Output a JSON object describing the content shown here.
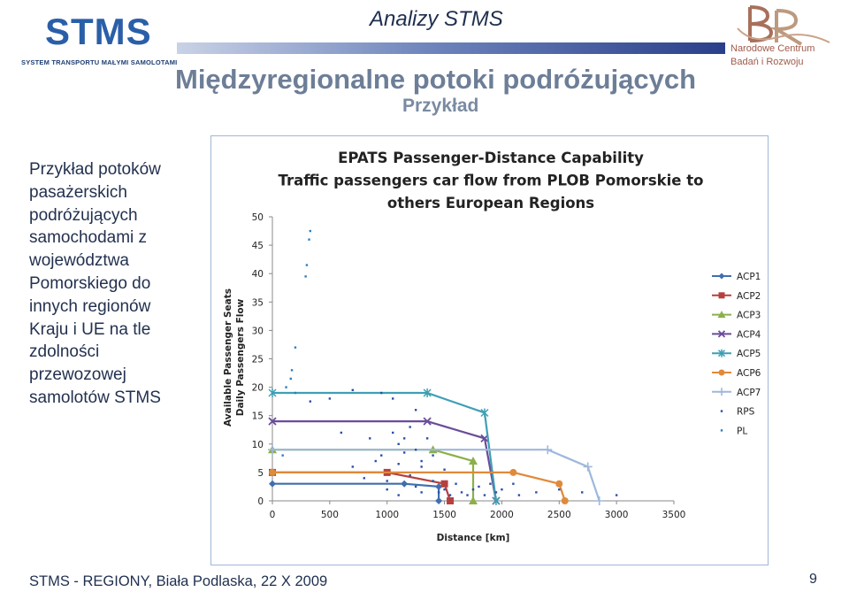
{
  "header": {
    "title": "Analizy STMS",
    "heading": "Międzyregionalne potoki podróżujących",
    "subheading": "Przykład"
  },
  "logos": {
    "stms": {
      "name": "STMS",
      "tagline": "SYSTEM TRANSPORTU MAŁYMI SAMOLOTAMI"
    },
    "ncbr": {
      "line1": "Narodowe Centrum",
      "line2": "Badań i Rozwoju"
    }
  },
  "description": {
    "lines": [
      "Przykład potoków",
      "pasażerskich",
      "podróżujących",
      "samochodami z",
      "województwa",
      "Pomorskiego do",
      "innych regionów",
      "Kraju i UE na tle",
      "zdolności",
      "przewozowej",
      "samolotów STMS"
    ]
  },
  "footer": {
    "text": "STMS - REGIONY, Biała Podlaska, 22 X 2009",
    "page": "9"
  },
  "colors": {
    "ACP1": "#3f6fae",
    "ACP2": "#b5413f",
    "ACP3": "#8bb04a",
    "ACP4": "#6b4c9a",
    "ACP5": "#3f9fb4",
    "ACP6": "#e08a3a",
    "ACP7": "#9eb8dc",
    "RPS": "#2a4fa8",
    "PL": "#2a7fc0"
  },
  "chart_data": {
    "type": "scatter",
    "title_lines": [
      "EPATS Passenger-Distance Capability",
      "Traffic passengers car flow from PLOB Pomorskie to",
      "others European Regions"
    ],
    "xlabel": "Distance [km]",
    "ylabel_lines": [
      "Available Passenger Seats",
      "Daily Passengers Flow"
    ],
    "xlim": [
      0,
      3500
    ],
    "ylim": [
      0,
      50
    ],
    "xticks": [
      0,
      500,
      1000,
      1500,
      2000,
      2500,
      3000,
      3500
    ],
    "yticks": [
      0,
      5,
      10,
      15,
      20,
      25,
      30,
      35,
      40,
      45,
      50
    ],
    "legend_position": "right",
    "series": [
      {
        "name": "ACP1",
        "marker": "diamond",
        "points": [
          [
            0,
            3
          ],
          [
            1150,
            3
          ],
          [
            1450,
            2.5
          ],
          [
            1450,
            0
          ]
        ]
      },
      {
        "name": "ACP2",
        "marker": "square",
        "points": [
          [
            0,
            5
          ],
          [
            1000,
            5
          ],
          [
            1500,
            3
          ],
          [
            1550,
            0
          ]
        ]
      },
      {
        "name": "ACP3",
        "marker": "triangle",
        "points": [
          [
            0,
            9
          ],
          [
            1400,
            9
          ],
          [
            1750,
            7
          ],
          [
            1750,
            0
          ]
        ]
      },
      {
        "name": "ACP4",
        "marker": "x",
        "points": [
          [
            0,
            14
          ],
          [
            1350,
            14
          ],
          [
            1850,
            11
          ],
          [
            1950,
            0
          ]
        ]
      },
      {
        "name": "ACP5",
        "marker": "star",
        "points": [
          [
            0,
            19
          ],
          [
            1350,
            19
          ],
          [
            1850,
            15.5
          ],
          [
            1950,
            0
          ]
        ]
      },
      {
        "name": "ACP6",
        "marker": "circle",
        "points": [
          [
            0,
            5
          ],
          [
            2100,
            5
          ],
          [
            2500,
            3
          ],
          [
            2550,
            0
          ]
        ]
      },
      {
        "name": "ACP7",
        "marker": "plus",
        "points": [
          [
            0,
            9
          ],
          [
            2400,
            9
          ],
          [
            2750,
            6
          ],
          [
            2850,
            0
          ]
        ]
      },
      {
        "name": "RPS",
        "marker": "dot",
        "points": [
          [
            330,
            17.5
          ],
          [
            500,
            18
          ],
          [
            700,
            19.5
          ],
          [
            950,
            19
          ],
          [
            1050,
            18
          ],
          [
            1250,
            16
          ],
          [
            600,
            12
          ],
          [
            850,
            11
          ],
          [
            1100,
            10
          ],
          [
            1200,
            13
          ],
          [
            1350,
            11
          ],
          [
            950,
            8
          ],
          [
            1250,
            9
          ],
          [
            1400,
            8
          ],
          [
            700,
            6
          ],
          [
            900,
            7
          ],
          [
            1100,
            6.5
          ],
          [
            1300,
            6
          ],
          [
            1500,
            5.5
          ],
          [
            800,
            4
          ],
          [
            1000,
            3.5
          ],
          [
            1200,
            4.5
          ],
          [
            1400,
            3.5
          ],
          [
            1600,
            3
          ],
          [
            1800,
            2.5
          ],
          [
            1900,
            3
          ],
          [
            2000,
            2
          ],
          [
            2100,
            3
          ],
          [
            2300,
            1.5
          ],
          [
            2500,
            2
          ],
          [
            3000,
            1
          ],
          [
            1000,
            2
          ],
          [
            1250,
            2.5
          ],
          [
            1450,
            1.5
          ],
          [
            1550,
            1
          ],
          [
            1650,
            1.5
          ],
          [
            1750,
            2
          ],
          [
            1850,
            1
          ],
          [
            1950,
            1.5
          ],
          [
            2150,
            1
          ],
          [
            2700,
            1.5
          ],
          [
            1100,
            1
          ],
          [
            1300,
            1.5
          ],
          [
            1500,
            2
          ],
          [
            1700,
            1
          ],
          [
            1150,
            8.5
          ],
          [
            1050,
            12
          ],
          [
            1150,
            11
          ],
          [
            1300,
            7
          ]
        ]
      },
      {
        "name": "PL",
        "marker": "dot",
        "points": [
          [
            330,
            47.5
          ],
          [
            320,
            46
          ],
          [
            300,
            41.5
          ],
          [
            290,
            39.5
          ],
          [
            200,
            27
          ],
          [
            170,
            23
          ],
          [
            160,
            21.5
          ],
          [
            90,
            8
          ],
          [
            120,
            20
          ],
          [
            200,
            19
          ]
        ]
      }
    ]
  }
}
